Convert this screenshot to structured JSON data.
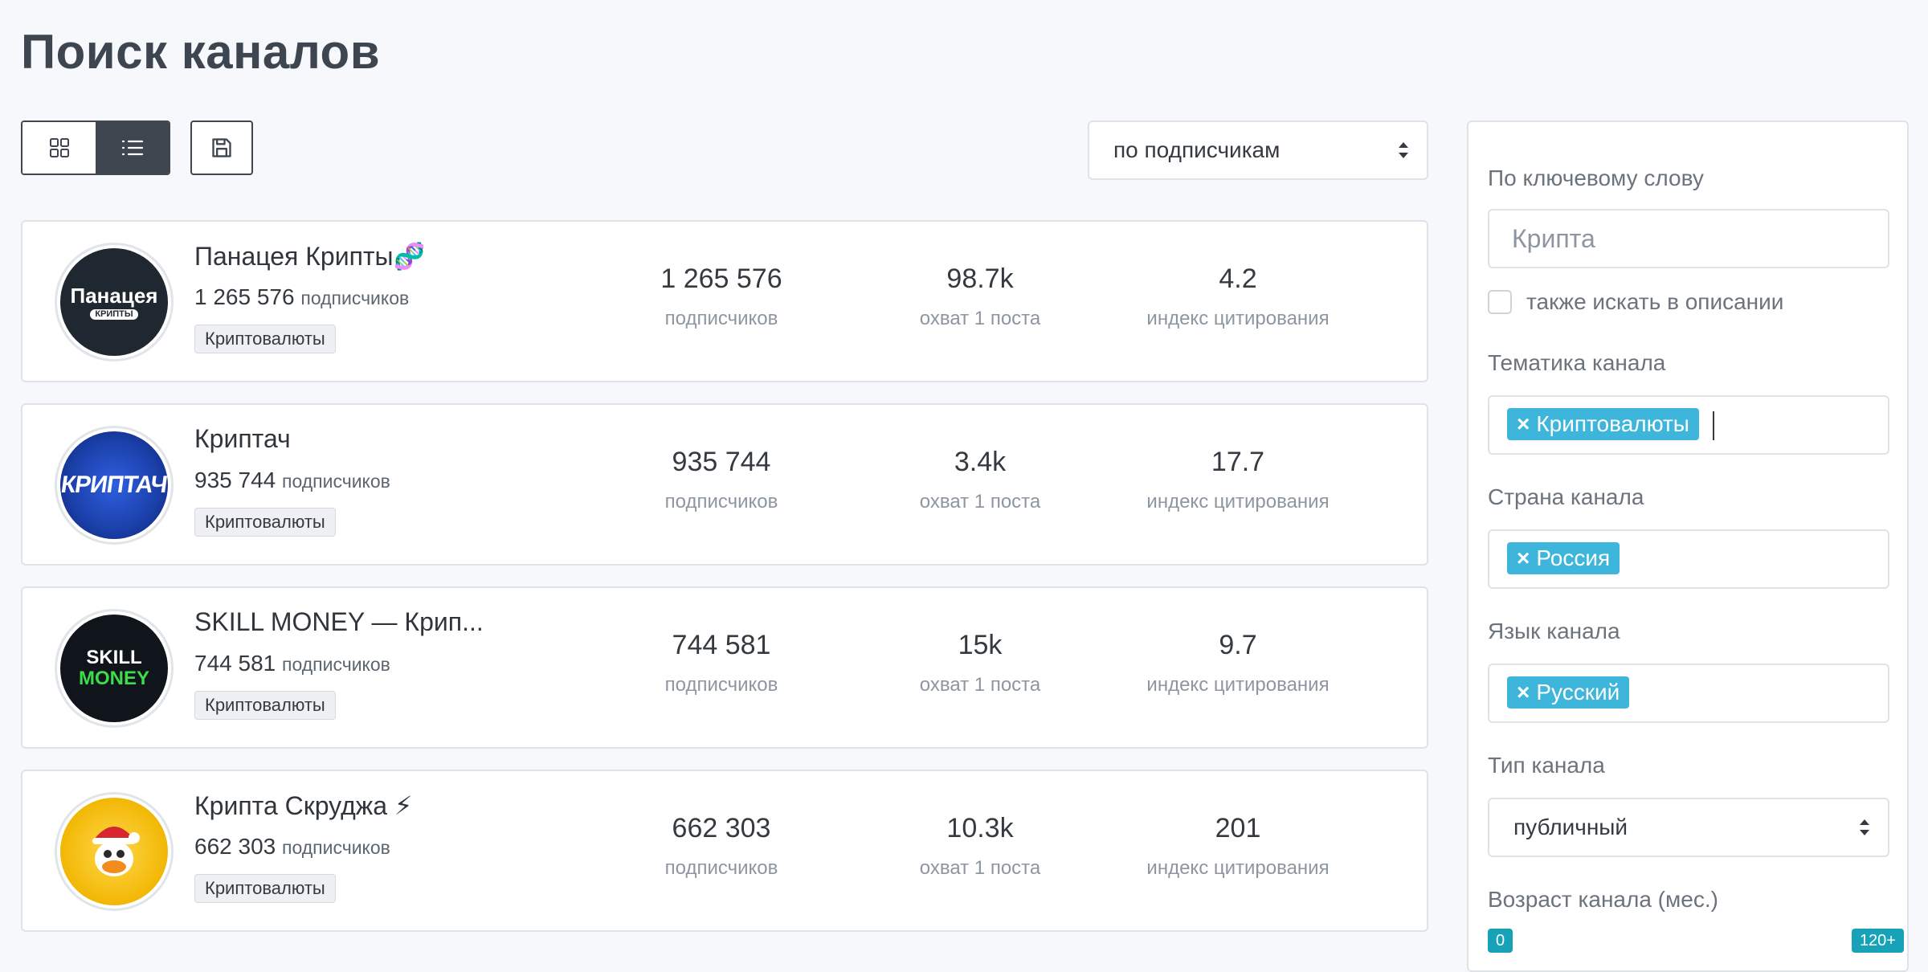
{
  "page": {
    "title": "Поиск каналов"
  },
  "sort": {
    "selected": "по подписчикам"
  },
  "channels": [
    {
      "name": "Панацея Крипты🧬",
      "subscribers": "1 265 576",
      "subscribers_unit": "подписчиков",
      "category": "Криптовалюты",
      "avatar_text": "Панацея",
      "avatar_subtext": "КРИПТЫ",
      "avatar_color": "#1f2730",
      "stats": [
        {
          "value": "1 265 576",
          "label": "подписчиков"
        },
        {
          "value": "98.7k",
          "label": "охват 1 поста"
        },
        {
          "value": "4.2",
          "label": "индекс цитирования"
        }
      ]
    },
    {
      "name": "Криптач",
      "subscribers": "935 744",
      "subscribers_unit": "подписчиков",
      "category": "Криптовалюты",
      "avatar_text": "КРИПТАЧ",
      "avatar_subtext": "",
      "avatar_color": "#1a3fa8",
      "stats": [
        {
          "value": "935 744",
          "label": "подписчиков"
        },
        {
          "value": "3.4k",
          "label": "охват 1 поста"
        },
        {
          "value": "17.7",
          "label": "индекс цитирования"
        }
      ]
    },
    {
      "name": "SKILL MONEY — Крип...",
      "subscribers": "744 581",
      "subscribers_unit": "подписчиков",
      "category": "Криптовалюты",
      "avatar_text": "SKILL",
      "avatar_subtext": "MONEY",
      "avatar_color": "#10151c",
      "stats": [
        {
          "value": "744 581",
          "label": "подписчиков"
        },
        {
          "value": "15k",
          "label": "охват 1 поста"
        },
        {
          "value": "9.7",
          "label": "индекс цитирования"
        }
      ]
    },
    {
      "name": "Крипта Скруджа ⚡",
      "subscribers": "662 303",
      "subscribers_unit": "подписчиков",
      "category": "Криптовалюты",
      "avatar_text": "",
      "avatar_subtext": "",
      "avatar_color": "#f2b705",
      "stats": [
        {
          "value": "662 303",
          "label": "подписчиков"
        },
        {
          "value": "10.3k",
          "label": "охват 1 поста"
        },
        {
          "value": "201",
          "label": "индекс цитирования"
        }
      ]
    }
  ],
  "filters": {
    "keyword": {
      "label": "По ключевому слову",
      "placeholder": "Крипта"
    },
    "search_description": {
      "label": "также искать в описании",
      "checked": false
    },
    "topic": {
      "label": "Тематика канала",
      "tags": [
        "Криптовалюты"
      ]
    },
    "country": {
      "label": "Страна канала",
      "tags": [
        "Россия"
      ]
    },
    "language": {
      "label": "Язык канала",
      "tags": [
        "Русский"
      ]
    },
    "type": {
      "label": "Тип канала",
      "selected": "публичный"
    },
    "age": {
      "label": "Возраст канала (мес.)",
      "min_label": "0",
      "max_label": "120+"
    }
  },
  "icons": {
    "grid": "grid-icon",
    "list": "list-icon",
    "save": "save-icon",
    "sort": "sort-arrows-icon"
  },
  "colors": {
    "tag": "#3eb6dc",
    "range_badge": "#17a2b8",
    "active_toggle": "#3f4650"
  }
}
